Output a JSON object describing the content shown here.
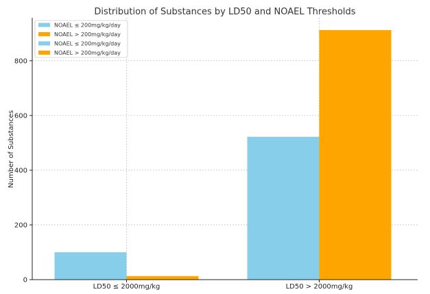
{
  "chart_data": {
    "type": "bar",
    "title": "Distribution of Substances by LD50 and NOAEL Thresholds",
    "xlabel": "",
    "ylabel": "Number of Substances",
    "categories": [
      "LD50 ≤ 2000mg/kg",
      "LD50 > 2000mg/kg"
    ],
    "series": [
      {
        "name": "NOAEL ≤ 200mg/kg/day",
        "color": "#87CEEB",
        "values": [
          100,
          522
        ]
      },
      {
        "name": "NOAEL > 200mg/kg/day",
        "color": "#FFA500",
        "values": [
          13,
          912
        ]
      }
    ],
    "legend_entries": [
      {
        "name": "NOAEL ≤ 200mg/kg/day",
        "color": "#87CEEB"
      },
      {
        "name": "NOAEL > 200mg/kg/day",
        "color": "#FFA500"
      },
      {
        "name": "NOAEL ≤ 200mg/kg/day",
        "color": "#87CEEB"
      },
      {
        "name": "NOAEL > 200mg/kg/day",
        "color": "#FFA500"
      }
    ],
    "yticks": [
      0,
      200,
      400,
      600,
      800
    ],
    "ylim": [
      0,
      957
    ],
    "grid": true,
    "legend_position": "top-left"
  }
}
